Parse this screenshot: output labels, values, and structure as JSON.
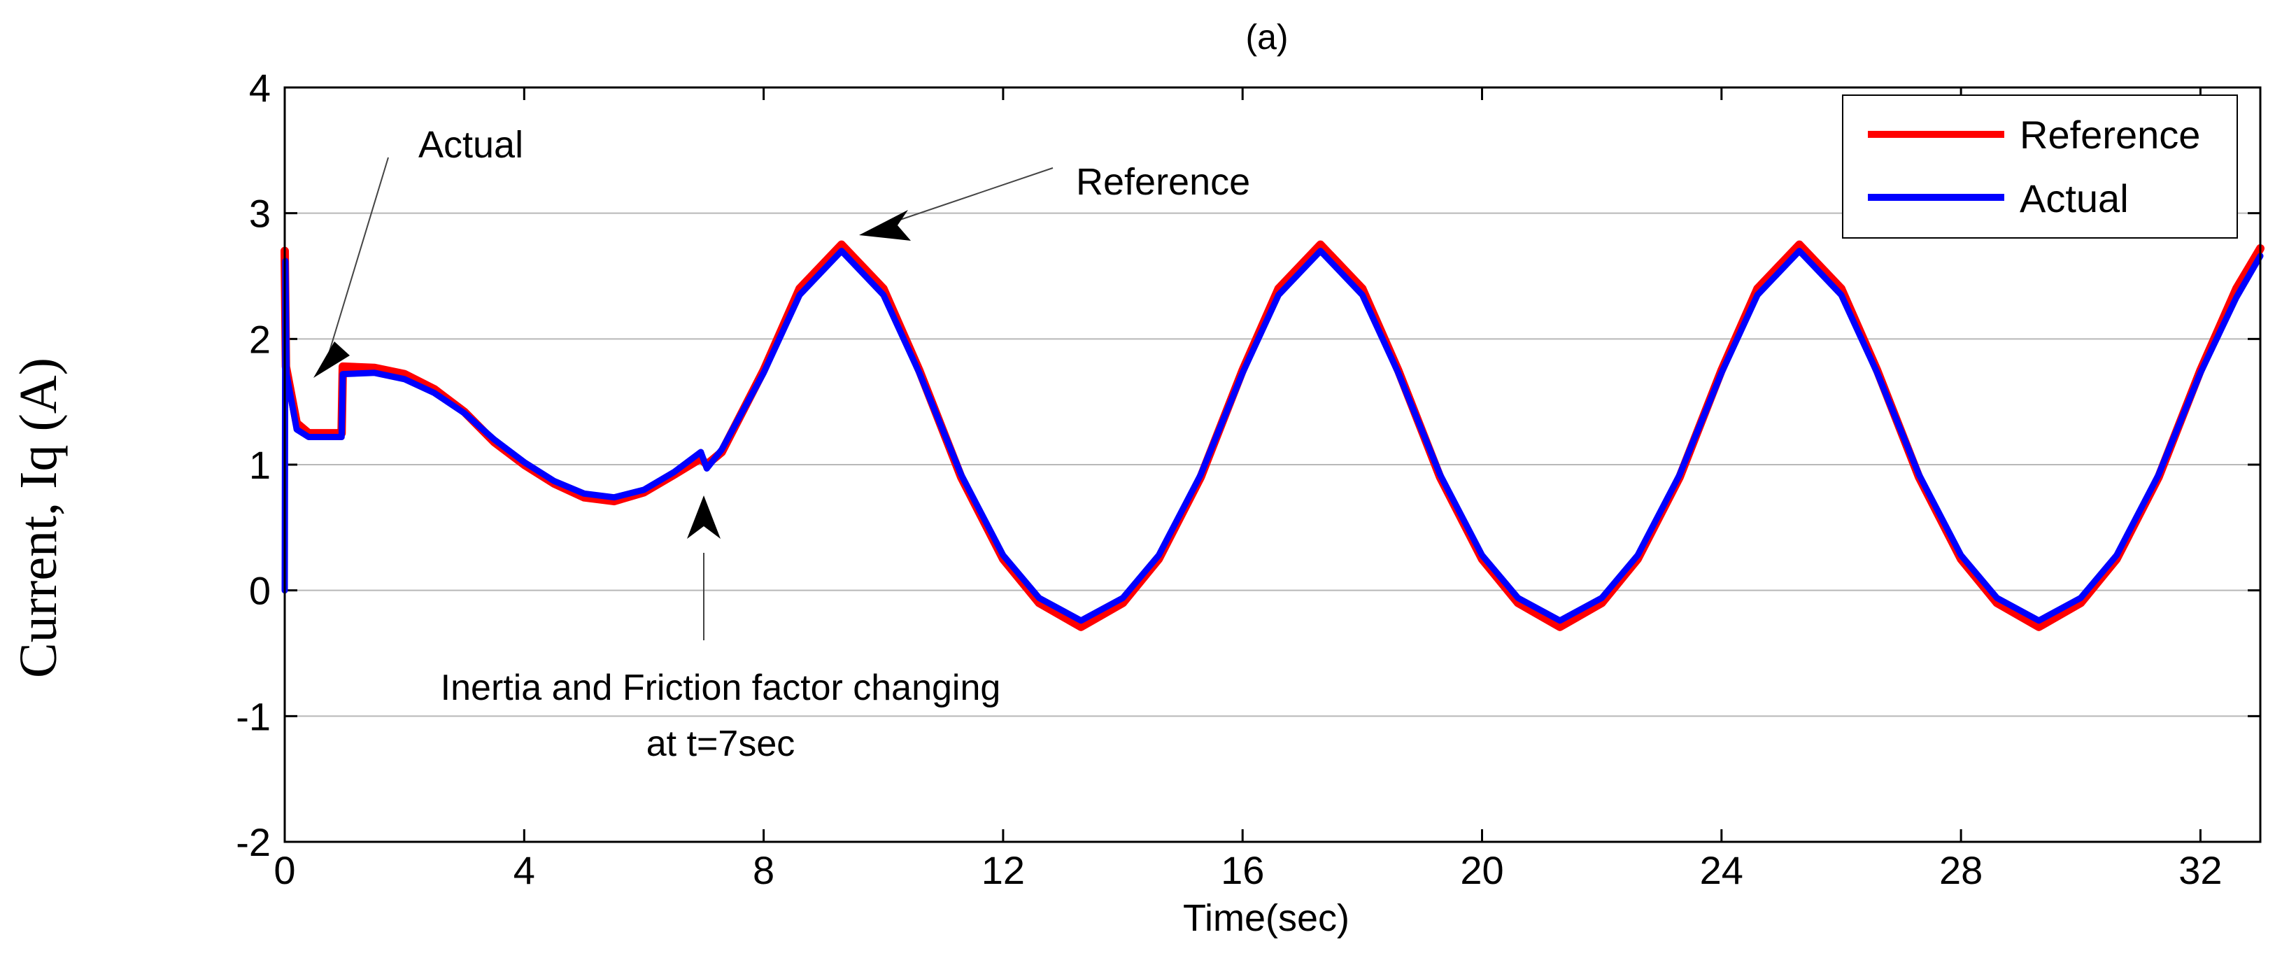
{
  "chart_data": {
    "type": "line",
    "title": "(a)",
    "xlabel": "Time(sec)",
    "ylabel": "Current, Iq (A)",
    "xlim": [
      0,
      33
    ],
    "ylim": [
      -2,
      4
    ],
    "xticks": [
      0,
      4,
      8,
      12,
      16,
      20,
      24,
      28,
      32
    ],
    "xtick_labels": [
      "0",
      "4",
      "8",
      "12",
      "16",
      "20",
      "24",
      "28",
      "32"
    ],
    "yticks": [
      -2,
      -1,
      0,
      1,
      2,
      3,
      4
    ],
    "ytick_labels": [
      "-2",
      "-1",
      "0",
      "1",
      "2",
      "3",
      "4"
    ],
    "grid": true,
    "legend_position": "top-right",
    "series": [
      {
        "name": "Reference",
        "color": "#ff0000",
        "points": [
          [
            0,
            2.7
          ],
          [
            0.02,
            1.78
          ],
          [
            0.2,
            1.33
          ],
          [
            0.4,
            1.25
          ],
          [
            0.95,
            1.25
          ],
          [
            0.97,
            1.78
          ],
          [
            1.5,
            1.77
          ],
          [
            2.0,
            1.72
          ],
          [
            2.5,
            1.6
          ],
          [
            3.0,
            1.42
          ],
          [
            3.5,
            1.18
          ],
          [
            4.0,
            1.0
          ],
          [
            4.5,
            0.85
          ],
          [
            5.0,
            0.74
          ],
          [
            5.5,
            0.71
          ],
          [
            6.0,
            0.78
          ],
          [
            6.5,
            0.92
          ],
          [
            6.95,
            1.05
          ],
          [
            7.05,
            1.0
          ],
          [
            7.3,
            1.1
          ],
          [
            8,
            1.75
          ],
          [
            8.6,
            2.4
          ],
          [
            9.3,
            2.75
          ],
          [
            10,
            2.4
          ],
          [
            10.6,
            1.75
          ],
          [
            11.3,
            0.9
          ],
          [
            12,
            0.25
          ],
          [
            12.6,
            -0.1
          ],
          [
            13.3,
            -0.29
          ],
          [
            14,
            -0.1
          ],
          [
            14.6,
            0.25
          ],
          [
            15.3,
            0.9
          ],
          [
            16,
            1.75
          ],
          [
            16.6,
            2.4
          ],
          [
            17.3,
            2.75
          ],
          [
            18,
            2.4
          ],
          [
            18.6,
            1.75
          ],
          [
            19.3,
            0.9
          ],
          [
            20,
            0.25
          ],
          [
            20.6,
            -0.1
          ],
          [
            21.3,
            -0.29
          ],
          [
            22,
            -0.1
          ],
          [
            22.6,
            0.25
          ],
          [
            23.3,
            0.9
          ],
          [
            24,
            1.75
          ],
          [
            24.6,
            2.4
          ],
          [
            25.3,
            2.75
          ],
          [
            26,
            2.4
          ],
          [
            26.6,
            1.75
          ],
          [
            27.3,
            0.9
          ],
          [
            28,
            0.25
          ],
          [
            28.6,
            -0.1
          ],
          [
            29.3,
            -0.29
          ],
          [
            30,
            -0.1
          ],
          [
            30.6,
            0.25
          ],
          [
            31.3,
            0.9
          ],
          [
            32,
            1.75
          ],
          [
            32.6,
            2.4
          ],
          [
            33,
            2.72
          ]
        ]
      },
      {
        "name": "Actual",
        "color": "#0000ff",
        "points": [
          [
            0,
            0.0
          ],
          [
            0.01,
            2.62
          ],
          [
            0.03,
            1.72
          ],
          [
            0.2,
            1.28
          ],
          [
            0.4,
            1.22
          ],
          [
            0.95,
            1.22
          ],
          [
            0.97,
            1.72
          ],
          [
            1.5,
            1.73
          ],
          [
            2.0,
            1.68
          ],
          [
            2.5,
            1.57
          ],
          [
            3.0,
            1.41
          ],
          [
            3.5,
            1.2
          ],
          [
            4.0,
            1.02
          ],
          [
            4.5,
            0.87
          ],
          [
            5.0,
            0.77
          ],
          [
            5.5,
            0.74
          ],
          [
            6.0,
            0.8
          ],
          [
            6.5,
            0.94
          ],
          [
            6.95,
            1.1
          ],
          [
            7.05,
            0.97
          ],
          [
            7.3,
            1.12
          ],
          [
            8,
            1.73
          ],
          [
            8.6,
            2.35
          ],
          [
            9.3,
            2.7
          ],
          [
            10,
            2.35
          ],
          [
            10.6,
            1.73
          ],
          [
            11.3,
            0.92
          ],
          [
            12,
            0.28
          ],
          [
            12.6,
            -0.06
          ],
          [
            13.3,
            -0.24
          ],
          [
            14,
            -0.06
          ],
          [
            14.6,
            0.28
          ],
          [
            15.3,
            0.92
          ],
          [
            16,
            1.73
          ],
          [
            16.6,
            2.35
          ],
          [
            17.3,
            2.7
          ],
          [
            18,
            2.35
          ],
          [
            18.6,
            1.73
          ],
          [
            19.3,
            0.92
          ],
          [
            20,
            0.28
          ],
          [
            20.6,
            -0.06
          ],
          [
            21.3,
            -0.24
          ],
          [
            22,
            -0.06
          ],
          [
            22.6,
            0.28
          ],
          [
            23.3,
            0.92
          ],
          [
            24,
            1.73
          ],
          [
            24.6,
            2.35
          ],
          [
            25.3,
            2.7
          ],
          [
            26,
            2.35
          ],
          [
            26.6,
            1.73
          ],
          [
            27.3,
            0.92
          ],
          [
            28,
            0.28
          ],
          [
            28.6,
            -0.06
          ],
          [
            29.3,
            -0.24
          ],
          [
            30,
            -0.06
          ],
          [
            30.6,
            0.28
          ],
          [
            31.3,
            0.92
          ],
          [
            32,
            1.73
          ],
          [
            32.6,
            2.33
          ],
          [
            33,
            2.66
          ]
        ]
      }
    ],
    "annotations": [
      {
        "text": "Actual",
        "target": [
          0.55,
          1.8
        ]
      },
      {
        "text": "Reference",
        "target": [
          9.4,
          2.82
        ]
      },
      {
        "text": "Inertia and Friction factor changing",
        "text2": "at t=7sec",
        "target": [
          7.0,
          0.7
        ]
      }
    ]
  }
}
